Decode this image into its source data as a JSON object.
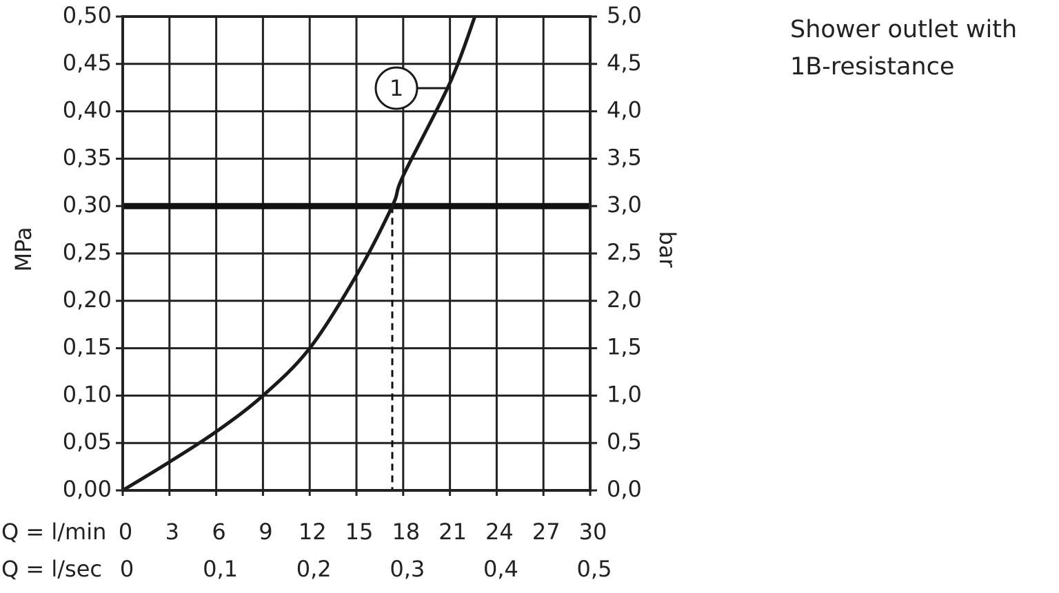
{
  "chart_data": {
    "type": "line",
    "title": "Shower outlet with 1B-resistance",
    "x_label": "Q = l/min",
    "x2_label": "Q = l/sec",
    "y_label": "MPa",
    "y2_label": "bar",
    "xlim": [
      0,
      30
    ],
    "xticks": [
      0,
      3,
      6,
      9,
      12,
      15,
      18,
      21,
      24,
      27,
      30
    ],
    "x2lim": [
      0,
      0.5
    ],
    "x2ticks": [
      0,
      {
        "value": 0.1,
        "label": "0,1"
      },
      {
        "value": 0.2,
        "label": "0,2"
      },
      {
        "value": 0.3,
        "label": "0,3"
      },
      {
        "value": 0.4,
        "label": "0,4"
      },
      {
        "value": 0.5,
        "label": "0,5"
      }
    ],
    "ylim": [
      0,
      0.5
    ],
    "yticks": [
      {
        "value": 0,
        "label": "0,00"
      },
      {
        "value": 0.05,
        "label": "0,05"
      },
      {
        "value": 0.1,
        "label": "0,10"
      },
      {
        "value": 0.15,
        "label": "0,15"
      },
      {
        "value": 0.2,
        "label": "0,20"
      },
      {
        "value": 0.25,
        "label": "0,25"
      },
      {
        "value": 0.3,
        "label": "0,30"
      },
      {
        "value": 0.35,
        "label": "0,35"
      },
      {
        "value": 0.4,
        "label": "0,40"
      },
      {
        "value": 0.45,
        "label": "0,45"
      },
      {
        "value": 0.5,
        "label": "0,50"
      }
    ],
    "y2lim": [
      0,
      5
    ],
    "y2ticks": [
      {
        "value": 0,
        "label": "0,0"
      },
      {
        "value": 0.5,
        "label": "0,5"
      },
      {
        "value": 1,
        "label": "1,0"
      },
      {
        "value": 1.5,
        "label": "1,5"
      },
      {
        "value": 2,
        "label": "2,0"
      },
      {
        "value": 2.5,
        "label": "2,5"
      },
      {
        "value": 3,
        "label": "3,0"
      },
      {
        "value": 3.5,
        "label": "3,5"
      },
      {
        "value": 4,
        "label": "4,0"
      },
      {
        "value": 4.5,
        "label": "4,5"
      },
      {
        "value": 5,
        "label": "5,0"
      }
    ],
    "grid": true,
    "reference": {
      "y": 0.3,
      "x": 17.3
    },
    "series": [
      {
        "name": "1",
        "color": "#1a1a1a",
        "x": [
          0,
          3,
          6,
          9,
          12,
          15,
          17.3,
          18,
          21,
          22.6
        ],
        "values": [
          0,
          0.03,
          0.062,
          0.1,
          0.15,
          0.227,
          0.3,
          0.332,
          0.43,
          0.5
        ]
      }
    ]
  }
}
